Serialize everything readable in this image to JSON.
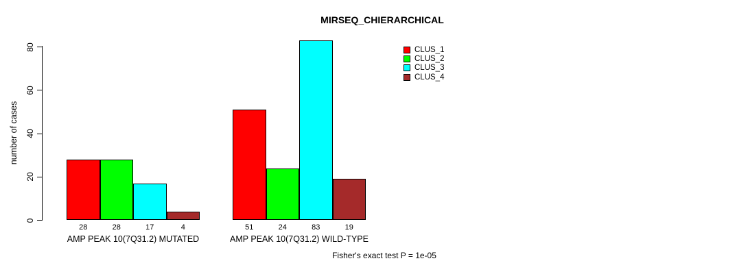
{
  "chart_data": {
    "type": "bar",
    "title": "MIRSEQ_CHIERARCHICAL",
    "ylabel": "number of cases",
    "xlabel": "",
    "ylim": [
      0,
      85
    ],
    "yticks": [
      0,
      20,
      40,
      60,
      80
    ],
    "grid": false,
    "legend_position": "top-right-inside",
    "series": [
      {
        "name": "CLUS_1",
        "color": "#FF0000"
      },
      {
        "name": "CLUS_2",
        "color": "#00FF00"
      },
      {
        "name": "CLUS_3",
        "color": "#00FFFF"
      },
      {
        "name": "CLUS_4",
        "color": "#A52A2A"
      }
    ],
    "groups": [
      {
        "label": "AMP PEAK 10(7Q31.2) MUTATED",
        "values": [
          28,
          28,
          17,
          4
        ]
      },
      {
        "label": "AMP PEAK 10(7Q31.2) WILD-TYPE",
        "values": [
          51,
          24,
          83,
          19
        ]
      }
    ],
    "bar_value_labels_shown": true,
    "annotation": "Fisher's exact test P = 1e-05"
  }
}
